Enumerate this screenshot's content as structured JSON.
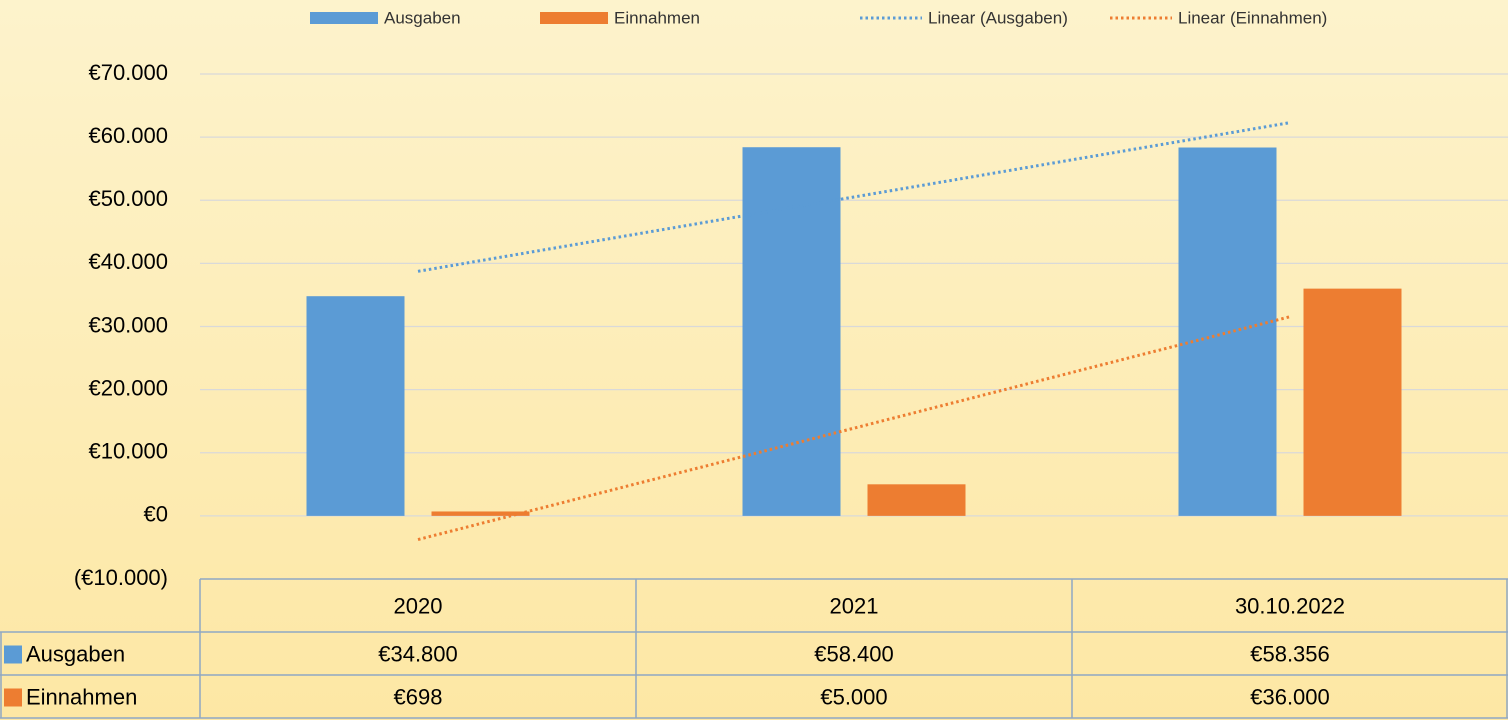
{
  "chart_data": {
    "type": "bar",
    "categories": [
      "2020",
      "2021",
      "30.10.2022"
    ],
    "series": [
      {
        "name": "Ausgaben",
        "color": "#5b9bd5",
        "values": [
          34800,
          58400,
          58356
        ],
        "value_labels": [
          "€34.800",
          "€58.400",
          "€58.356"
        ]
      },
      {
        "name": "Einnahmen",
        "color": "#ed7d31",
        "values": [
          698,
          5000,
          36000
        ],
        "value_labels": [
          "€698",
          "€5.000",
          "€36.000"
        ]
      }
    ],
    "trendlines": [
      {
        "name": "Linear (Ausgaben)",
        "color": "#5b9bd5",
        "values": [
          38741,
          50519,
          62297
        ]
      },
      {
        "name": "Linear (Einnahmen)",
        "color": "#ed7d31",
        "values": [
          -3752,
          13899,
          31550
        ]
      }
    ],
    "ylim": [
      -10000,
      70000
    ],
    "yticks": [
      {
        "value": -10000,
        "label": "(€10.000)"
      },
      {
        "value": 0,
        "label": "€0"
      },
      {
        "value": 10000,
        "label": "€10.000"
      },
      {
        "value": 20000,
        "label": "€20.000"
      },
      {
        "value": 30000,
        "label": "€30.000"
      },
      {
        "value": 40000,
        "label": "€40.000"
      },
      {
        "value": 50000,
        "label": "€50.000"
      },
      {
        "value": 60000,
        "label": "€60.000"
      },
      {
        "value": 70000,
        "label": "€70.000"
      }
    ],
    "grid": true,
    "legend": "top",
    "data_table": true
  }
}
